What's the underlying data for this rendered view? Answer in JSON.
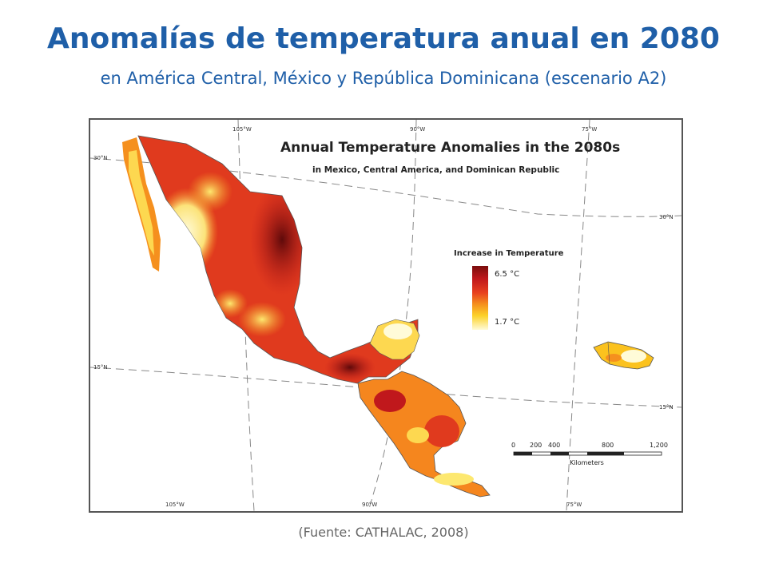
{
  "slide": {
    "title": "Anomalías de temperatura anual en 2080",
    "subtitle": "en América Central, México y República Dominicana (escenario A2)",
    "source": "(Fuente: CATHALAC, 2008)"
  },
  "map": {
    "title": "Annual Temperature Anomalies in the 2080s",
    "subtitle": "in Mexico, Central America, and Dominican Republic",
    "legend": {
      "title": "Increase in Temperature",
      "max_label": "6.5 °C",
      "min_label": "1.7 °C",
      "colors": [
        "#7a0d0d",
        "#c0181c",
        "#e53a1e",
        "#f5861e",
        "#fbc21e",
        "#fdf07a",
        "#fffbd8"
      ]
    },
    "scale_bar": {
      "ticks": [
        "0",
        "200",
        "400",
        "800",
        "1,200"
      ],
      "unit": "Kilometers"
    },
    "longitude_labels_top": [
      "105°W",
      "90°W",
      "75°W"
    ],
    "longitude_labels_bottom": [
      "105°W",
      "90°W",
      "75°W"
    ],
    "latitude_labels_left": [
      "30°N",
      "15°N"
    ],
    "latitude_labels_right": [
      "30°N",
      "15°N"
    ]
  }
}
